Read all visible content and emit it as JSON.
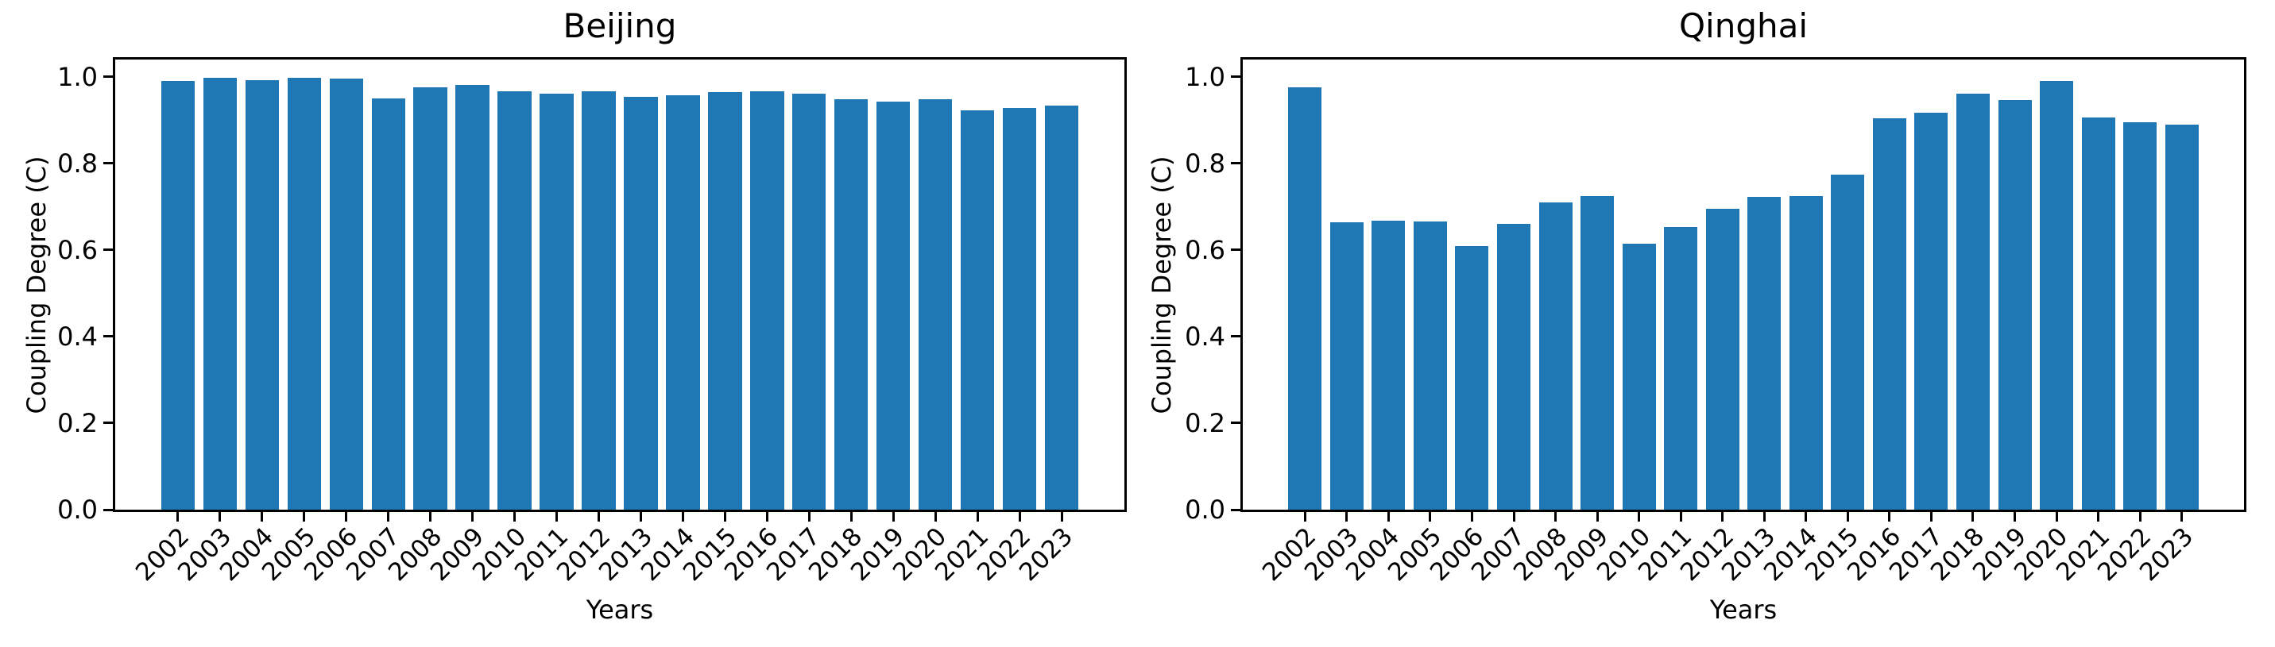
{
  "figure": {
    "background_color": "#ffffff",
    "text_color": "#000000",
    "bar_color": "#1f77b4",
    "spine_color": "#000000"
  },
  "chart_data": [
    {
      "type": "bar",
      "title": "Beijing",
      "xlabel": "Years",
      "ylabel": "Coupling Degree (C)",
      "categories": [
        "2002",
        "2003",
        "2004",
        "2005",
        "2006",
        "2007",
        "2008",
        "2009",
        "2010",
        "2011",
        "2012",
        "2013",
        "2014",
        "2015",
        "2016",
        "2017",
        "2018",
        "2019",
        "2020",
        "2021",
        "2022",
        "2023"
      ],
      "values": [
        0.99,
        0.997,
        0.993,
        0.998,
        0.996,
        0.951,
        0.976,
        0.981,
        0.966,
        0.961,
        0.967,
        0.953,
        0.957,
        0.965,
        0.966,
        0.961,
        0.948,
        0.942,
        0.948,
        0.923,
        0.928,
        0.933
      ],
      "yticks": [
        0.0,
        0.2,
        0.4,
        0.6,
        0.8,
        1.0
      ],
      "ylim": [
        0,
        1.04
      ],
      "grid": false,
      "legend": false,
      "xtick_rotation_deg": 45
    },
    {
      "type": "bar",
      "title": "Qinghai",
      "xlabel": "Years",
      "ylabel": "Coupling Degree (C)",
      "categories": [
        "2002",
        "2003",
        "2004",
        "2005",
        "2006",
        "2007",
        "2008",
        "2009",
        "2010",
        "2011",
        "2012",
        "2013",
        "2014",
        "2015",
        "2016",
        "2017",
        "2018",
        "2019",
        "2020",
        "2021",
        "2022",
        "2023"
      ],
      "values": [
        0.975,
        0.664,
        0.667,
        0.665,
        0.609,
        0.66,
        0.709,
        0.724,
        0.615,
        0.653,
        0.695,
        0.723,
        0.725,
        0.774,
        0.905,
        0.918,
        0.961,
        0.946,
        0.991,
        0.907,
        0.896,
        0.89
      ],
      "yticks": [
        0.0,
        0.2,
        0.4,
        0.6,
        0.8,
        1.0
      ],
      "ylim": [
        0,
        1.04
      ],
      "grid": false,
      "legend": false,
      "xtick_rotation_deg": 45
    }
  ]
}
